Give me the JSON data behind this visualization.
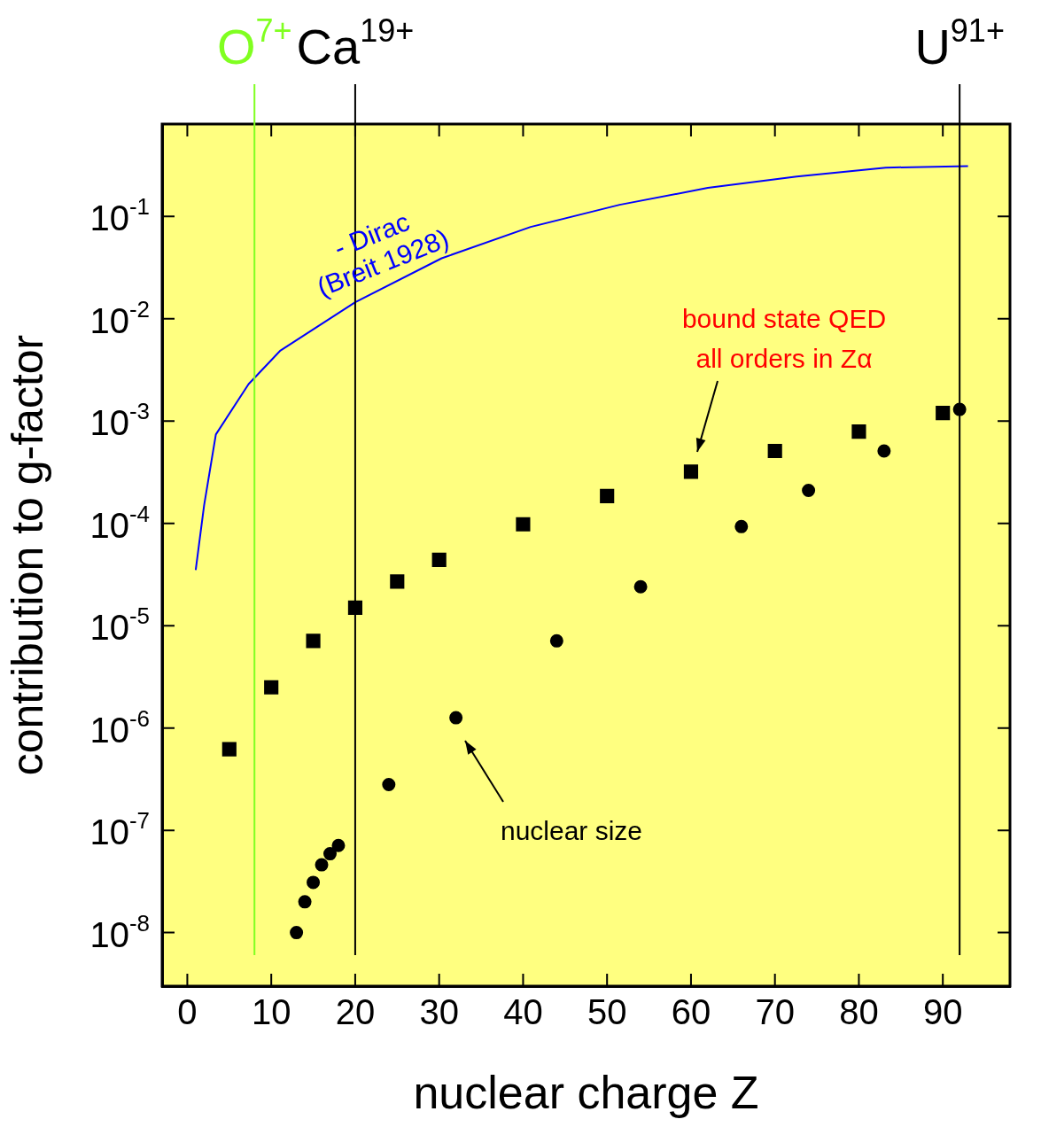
{
  "chart_data": {
    "type": "scatter",
    "xlabel": "nuclear charge Z",
    "ylabel": "contribution to g-factor",
    "log": "y",
    "grid": false,
    "xlim": [
      -3,
      98
    ],
    "xticks": [
      0,
      10,
      20,
      30,
      40,
      50,
      60,
      70,
      80,
      90
    ],
    "ylim": [
      3e-09,
      0.8
    ],
    "yticks": [
      {
        "value": 1e-08,
        "label": "10$^{-8}$"
      },
      {
        "value": 1e-07,
        "label": "10$^{-7}$"
      },
      {
        "value": 1e-06,
        "label": "10$^{-6}$"
      },
      {
        "value": 1e-05,
        "label": "10$^{-5}$"
      },
      {
        "value": 0.0001,
        "label": "10$^{-4}$"
      },
      {
        "value": 0.001,
        "label": "10$^{-3}$"
      },
      {
        "value": 0.01,
        "label": "10$^{-2}$"
      },
      {
        "value": 0.1,
        "label": "10$^{-1}$"
      }
    ],
    "series": [
      {
        "name": "- Dirac\n(Breit 1928)",
        "type": "line",
        "color": "#0000ff",
        "marker": "none",
        "x": [
          1,
          2,
          3.4,
          7.3,
          11.1,
          20,
          30.3,
          40.9,
          51.5,
          62,
          72.6,
          83.2,
          93
        ],
        "values": [
          3.5e-05,
          0.00015,
          0.00074,
          0.0023,
          0.0049,
          0.0145,
          0.039,
          0.079,
          0.13,
          0.19,
          0.245,
          0.3,
          0.31
        ]
      },
      {
        "type": "scatter",
        "color": "#000000",
        "marker": "square",
        "x": [
          5,
          10,
          15,
          20,
          25,
          30,
          40,
          50,
          60,
          70,
          80,
          90
        ],
        "values": [
          6.2e-07,
          2.5e-06,
          7.1e-06,
          1.5e-05,
          2.7e-05,
          4.4e-05,
          9.8e-05,
          0.000185,
          0.00032,
          0.00051,
          0.00079,
          0.0012
        ]
      },
      {
        "type": "scatter",
        "color": "#000000",
        "marker": "circle",
        "x": [
          13,
          14,
          15,
          16,
          17,
          18,
          24,
          32,
          44,
          54,
          66,
          74,
          83,
          92
        ],
        "values": [
          1e-08,
          2e-08,
          3.1e-08,
          4.6e-08,
          5.9e-08,
          7.1e-08,
          2.8e-07,
          1.26e-06,
          7.1e-06,
          2.4e-05,
          9.3e-05,
          0.00021,
          0.00051,
          0.0013
        ]
      }
    ],
    "ref_lines": [
      {
        "axis": "x",
        "value": 8,
        "label": "O$^{7+}$",
        "color": "#80ff20"
      },
      {
        "axis": "x",
        "value": 20,
        "label": "Ca$^{19+}$",
        "color": "#000000"
      },
      {
        "axis": "x",
        "value": 92,
        "label": "U$^{91+}$",
        "color": "#000000"
      }
    ],
    "annotations": [
      "bound state QED\nall orders in Zα",
      "nuclear size"
    ]
  }
}
